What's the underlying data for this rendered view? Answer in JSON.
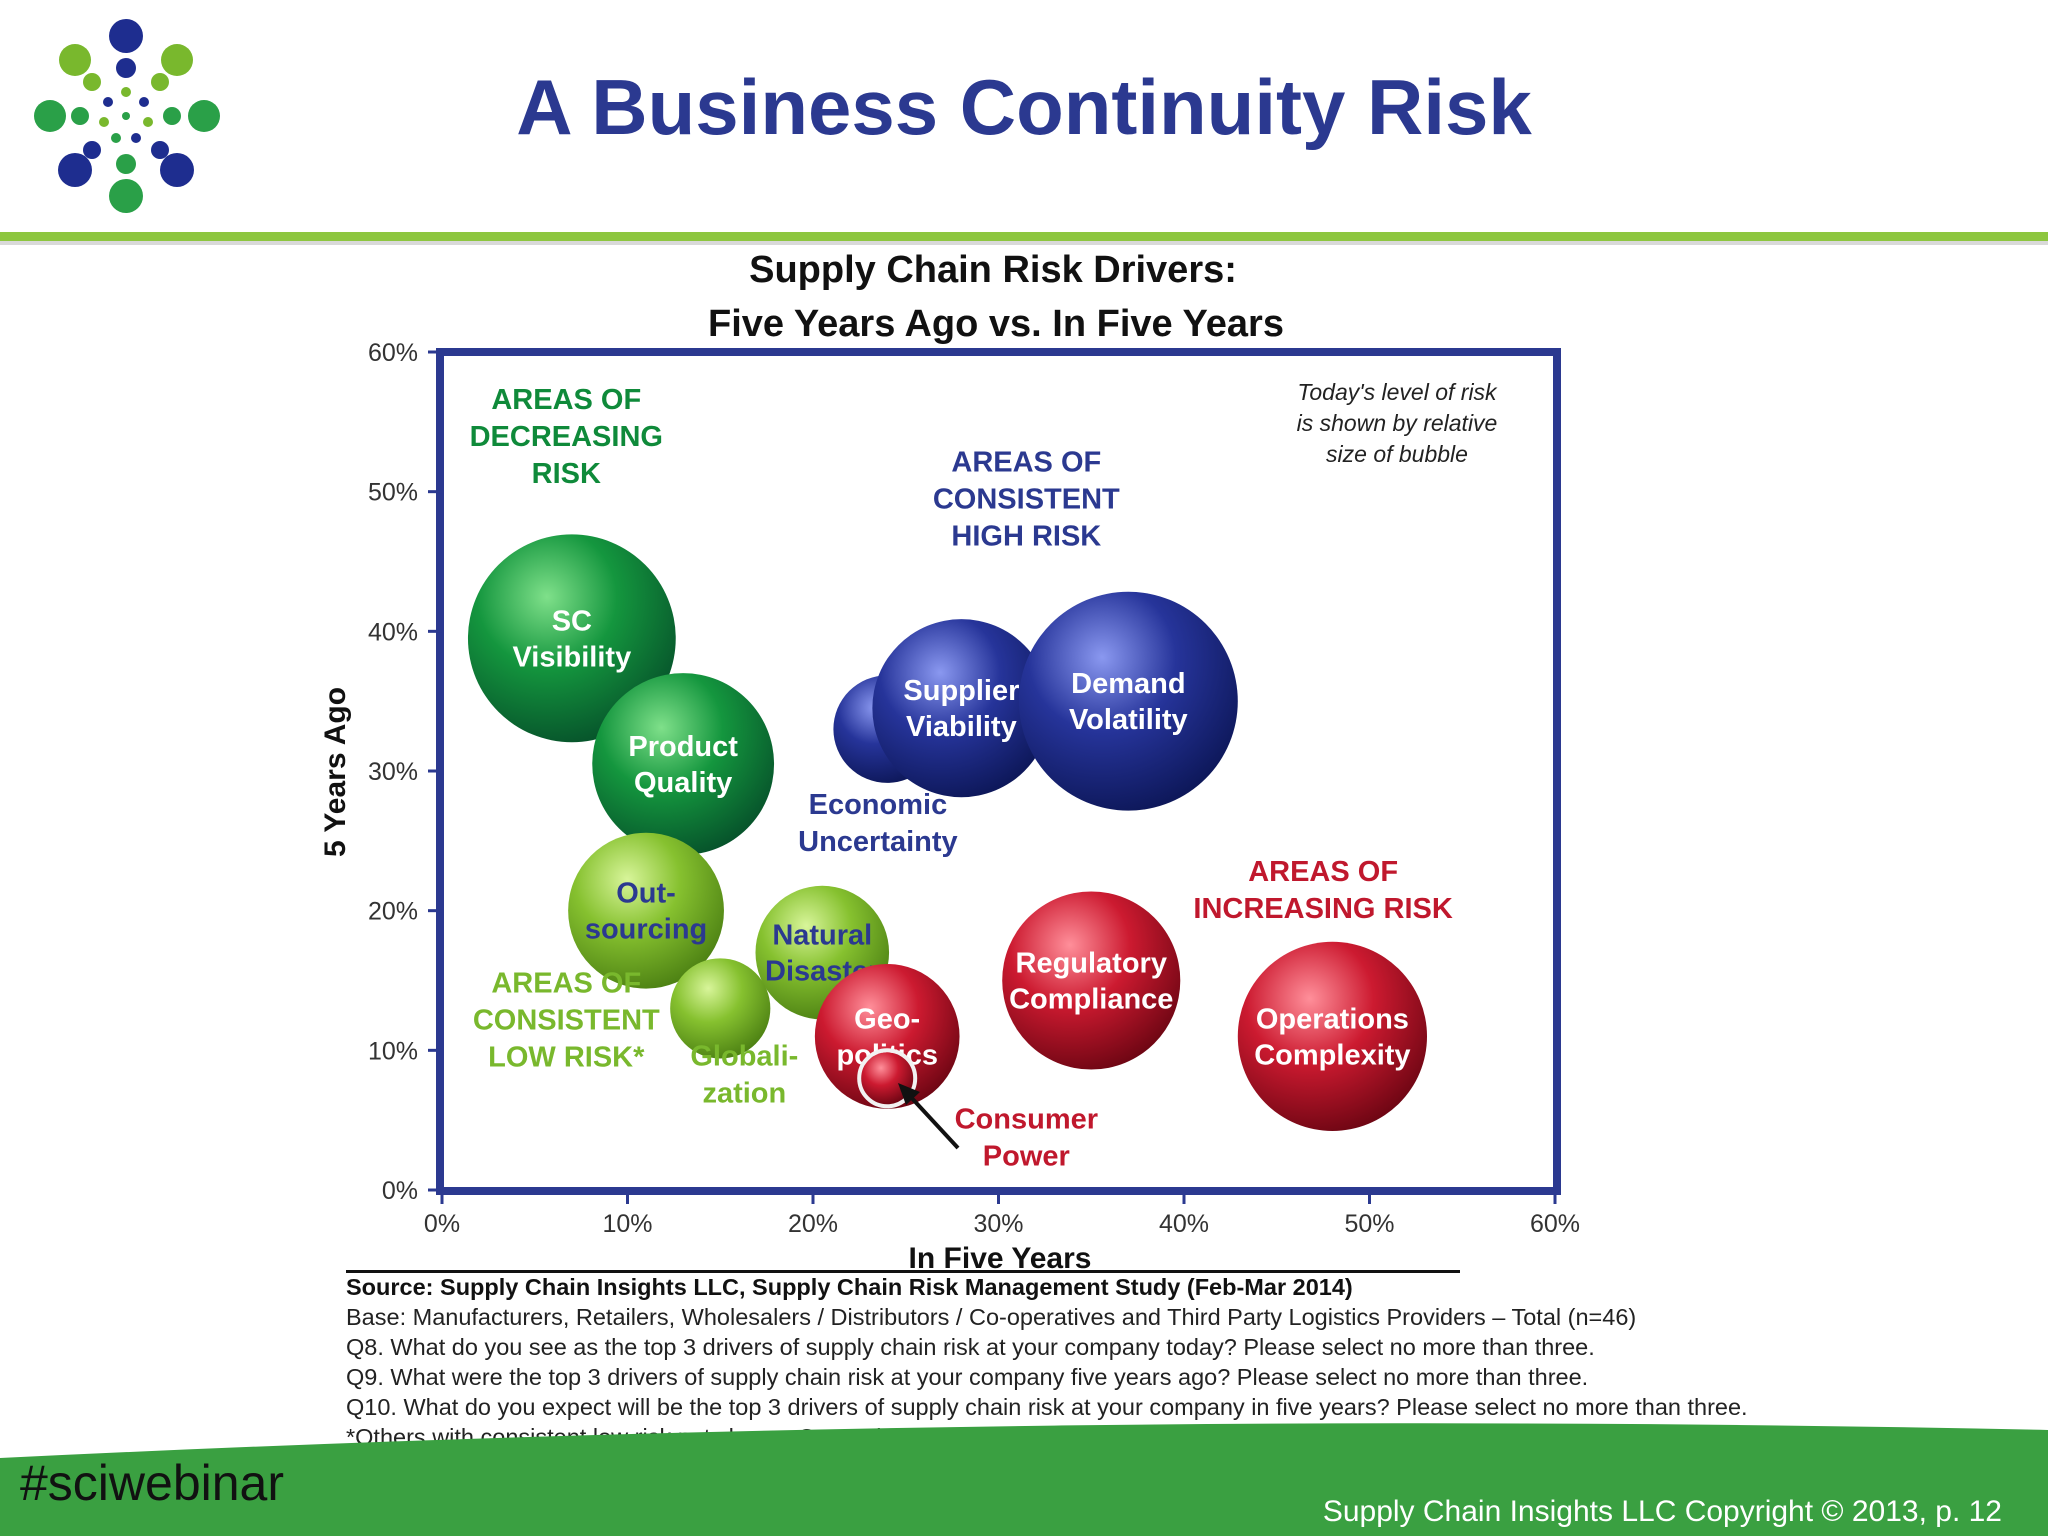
{
  "slide": {
    "title": "A Business Continuity Risk",
    "hashtag": "#sciwebinar",
    "copyright": "Supply Chain Insights LLC Copyright © 2013, p. 12",
    "logo_icon": "dot-burst-logo-icon",
    "colors": {
      "title": "#2b3990",
      "accent_green": "#8dc63f",
      "footer_green": "#3aa041"
    }
  },
  "source": {
    "title": "Source:  Supply Chain Insights LLC, Supply Chain Risk Management Study (Feb-Mar 2014)",
    "lines": [
      "Base:  Manufacturers, Retailers, Wholesalers / Distributors / Co-operatives and Third Party Logistics Providers – Total (n=46)",
      "Q8. What do you see as the top 3 drivers of supply chain risk at your company today?  Please select no more than three.",
      "Q9. What were the top 3 drivers of supply chain risk at your company five years ago?  Please select no more than three.",
      "Q10. What do you expect will be the top 3 drivers of supply chain risk at your company in five years?  Please select no more than three.",
      "*Others with consistent low risk not shown:  Corruption, Intellectual Property Right, Water Scarcity and Computer Security"
    ]
  },
  "chart_data": {
    "type": "scatter",
    "title_lines": [
      "Supply Chain Risk Drivers:",
      "Five Years Ago vs. In Five Years"
    ],
    "xlabel": "In Five Years",
    "ylabel": "5 Years Ago",
    "xlim": [
      0,
      60
    ],
    "ylim": [
      0,
      60
    ],
    "x_ticks": [
      "0%",
      "10%",
      "20%",
      "30%",
      "40%",
      "50%",
      "60%"
    ],
    "y_ticks": [
      "0%",
      "10%",
      "20%",
      "30%",
      "40%",
      "50%",
      "60%"
    ],
    "grid": false,
    "legend": "none",
    "size_note": [
      "Today's level of risk",
      "is shown by relative",
      "size of bubble"
    ],
    "colors": {
      "green": "#0f8a3a",
      "light_green": "#79b82d",
      "blue": "#1e2d8f",
      "red": "#c0182d",
      "axis": "#2b3990"
    },
    "bubbles": [
      {
        "lines": [
          "SC",
          "Visibility"
        ],
        "x": 7,
        "y": 39.5,
        "size": 5.6,
        "color": "green",
        "label_color": "#ffffff"
      },
      {
        "lines": [
          "Product",
          "Quality"
        ],
        "x": 13,
        "y": 30.5,
        "size": 4.9,
        "color": "green",
        "label_color": "#ffffff"
      },
      {
        "lines": [
          "Out-",
          "sourcing"
        ],
        "x": 11,
        "y": 20,
        "size": 4.2,
        "color": "light_green",
        "label_color": "#2b3990"
      },
      {
        "lines": [
          "Natural",
          "Disaster"
        ],
        "x": 20.5,
        "y": 17,
        "size": 3.6,
        "color": "light_green",
        "label_color": "#2b3990"
      },
      {
        "lines": [],
        "x": 15,
        "y": 13,
        "size": 2.7,
        "color": "light_green",
        "label_color": "#ffffff"
      },
      {
        "lines": [
          "Geo-",
          "politics"
        ],
        "x": 24,
        "y": 11,
        "size": 3.9,
        "color": "red",
        "label_color": "#ffffff"
      },
      {
        "lines": [],
        "x": 24,
        "y": 8,
        "size": 1.4,
        "color": "red",
        "label_color": "#ffffff"
      },
      {
        "lines": [],
        "x": 24,
        "y": 33,
        "size": 2.9,
        "color": "blue",
        "label_color": "#ffffff"
      },
      {
        "lines": [
          "Supplier",
          "Viability"
        ],
        "x": 28,
        "y": 34.5,
        "size": 4.8,
        "color": "blue",
        "label_color": "#ffffff"
      },
      {
        "lines": [
          "Demand",
          "Volatility"
        ],
        "x": 37,
        "y": 35,
        "size": 5.9,
        "color": "blue",
        "label_color": "#ffffff"
      },
      {
        "lines": [
          "Regulatory",
          "Compliance"
        ],
        "x": 35,
        "y": 15,
        "size": 4.8,
        "color": "red",
        "label_color": "#ffffff"
      },
      {
        "lines": [
          "Operations",
          "Complexity"
        ],
        "x": 48,
        "y": 11,
        "size": 5.1,
        "color": "red",
        "label_color": "#ffffff"
      }
    ],
    "annotations": [
      {
        "lines": [
          "AREAS OF",
          "DECREASING",
          "RISK"
        ],
        "x": 6.7,
        "y": 54,
        "color": "#0f8a3a"
      },
      {
        "lines": [
          "AREAS OF",
          "CONSISTENT",
          "HIGH RISK"
        ],
        "x": 31.5,
        "y": 49.5,
        "color": "#2b3990"
      },
      {
        "lines": [
          "Economic",
          "Uncertainty"
        ],
        "x": 23.5,
        "y": 26.3,
        "color": "#2b3990"
      },
      {
        "lines": [
          "AREAS OF",
          "INCREASING RISK"
        ],
        "x": 47.5,
        "y": 21.5,
        "color": "#c0182d"
      },
      {
        "lines": [
          "AREAS OF",
          "CONSISTENT",
          "LOW RISK*"
        ],
        "x": 6.7,
        "y": 12.2,
        "color": "#79b82d"
      },
      {
        "lines": [
          "Globali-",
          "zation"
        ],
        "x": 16.3,
        "y": 8.3,
        "color": "#79b82d"
      },
      {
        "lines": [
          "Consumer",
          "Power"
        ],
        "x": 31.5,
        "y": 3.8,
        "color": "#c0182d"
      }
    ]
  }
}
